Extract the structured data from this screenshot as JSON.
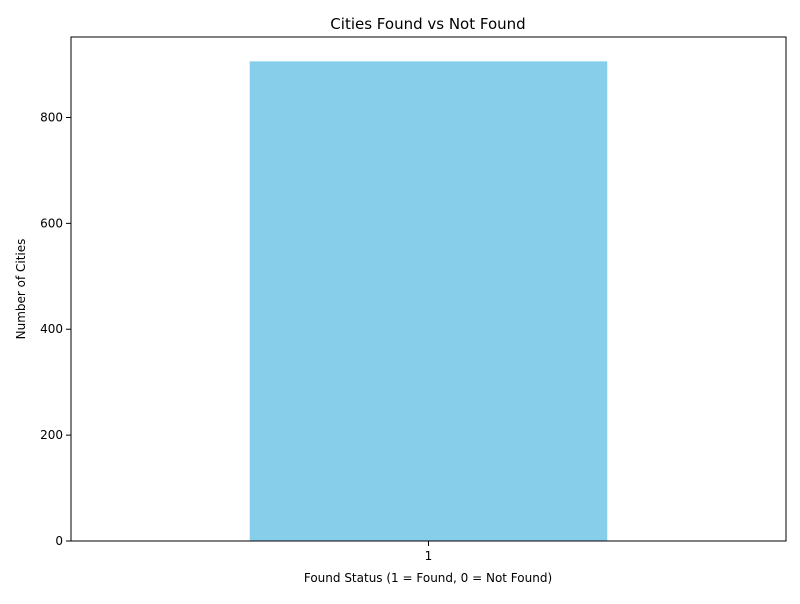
{
  "chart_data": {
    "type": "bar",
    "title": "Cities Found vs Not Found",
    "xlabel": "Found Status (1 = Found, 0 = Not Found)",
    "ylabel": "Number of Cities",
    "categories": [
      "1"
    ],
    "values": [
      906
    ],
    "ylim": [
      0,
      952
    ],
    "yticks": [
      0,
      200,
      400,
      600,
      800
    ],
    "bar_color": "#87CEEB",
    "grid": false,
    "legend": "none"
  }
}
